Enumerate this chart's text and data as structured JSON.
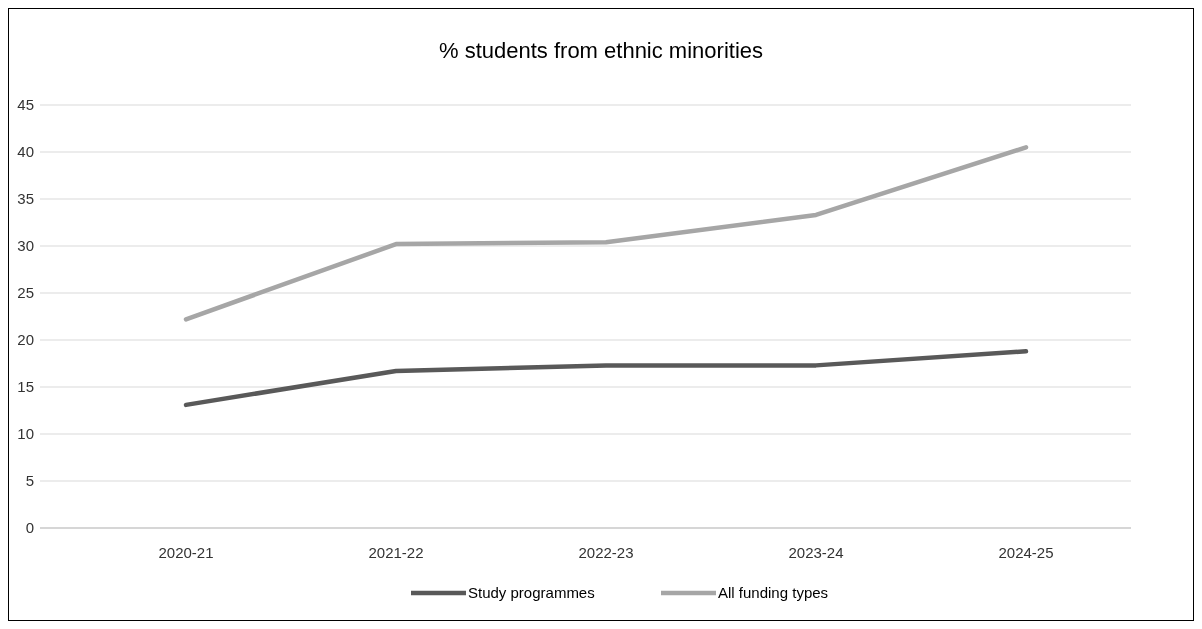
{
  "chart_data": {
    "type": "line",
    "title": "% students from ethnic minorities",
    "categories": [
      "2020-21",
      "2021-22",
      "2022-23",
      "2023-24",
      "2024-25"
    ],
    "series": [
      {
        "name": "Study programmes",
        "color": "#595959",
        "values": [
          13.1,
          16.7,
          17.3,
          17.3,
          18.8
        ]
      },
      {
        "name": "All funding types",
        "color": "#a6a6a6",
        "values": [
          22.2,
          30.2,
          30.4,
          33.3,
          40.5
        ]
      }
    ],
    "ylim": [
      0,
      45
    ],
    "yticks": [
      0,
      5,
      10,
      15,
      20,
      25,
      30,
      35,
      40,
      45
    ],
    "grid": "y",
    "legend": "bottom",
    "marker": "none",
    "line_style": "solid"
  }
}
